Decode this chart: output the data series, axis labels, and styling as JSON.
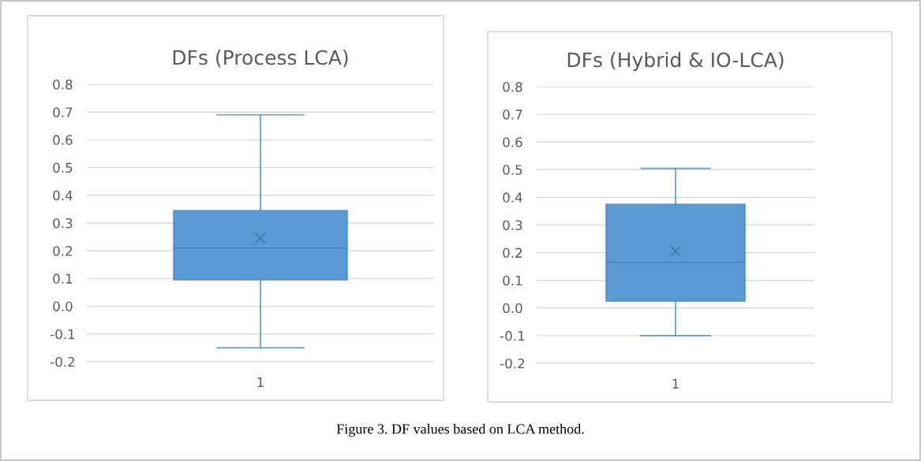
{
  "chart_data": [
    {
      "type": "box",
      "title": "DFs (Process LCA)",
      "categories": [
        "1"
      ],
      "color": "#5b9bd5",
      "marker": "cross",
      "grid": "y",
      "boxes": [
        {
          "low": -0.15,
          "q1": 0.095,
          "median": 0.21,
          "q3": 0.345,
          "high": 0.69,
          "mean": 0.245
        }
      ],
      "ylim": [
        -0.2,
        0.8
      ],
      "yticks": [
        {
          "value": -0.2,
          "label": "-0.2"
        },
        {
          "value": -0.1,
          "label": "-0.1"
        },
        {
          "value": 0,
          "label": "0.0"
        },
        0.1,
        0.2,
        0.3,
        0.4,
        0.5,
        0.6,
        0.7,
        0.8
      ],
      "annotations": [
        "Figure 3. DF values based on LCA method."
      ]
    },
    {
      "type": "box",
      "title": "DFs (Hybrid & IO-LCA)",
      "categories": [
        "1"
      ],
      "color": "#5b9bd5",
      "marker": "cross",
      "grid": "y",
      "boxes": [
        {
          "low": -0.1,
          "q1": 0.025,
          "median": 0.165,
          "q3": 0.375,
          "high": 0.505,
          "mean": 0.205
        }
      ],
      "ylim": [
        -0.2,
        0.8
      ],
      "yticks": [
        {
          "value": -0.2,
          "label": "-0.2"
        },
        {
          "value": -0.1,
          "label": "-0.1"
        },
        {
          "value": 0,
          "label": "0.0"
        },
        0.1,
        0.2,
        0.3,
        0.4,
        0.5,
        0.6,
        0.7,
        0.8
      ]
    }
  ]
}
